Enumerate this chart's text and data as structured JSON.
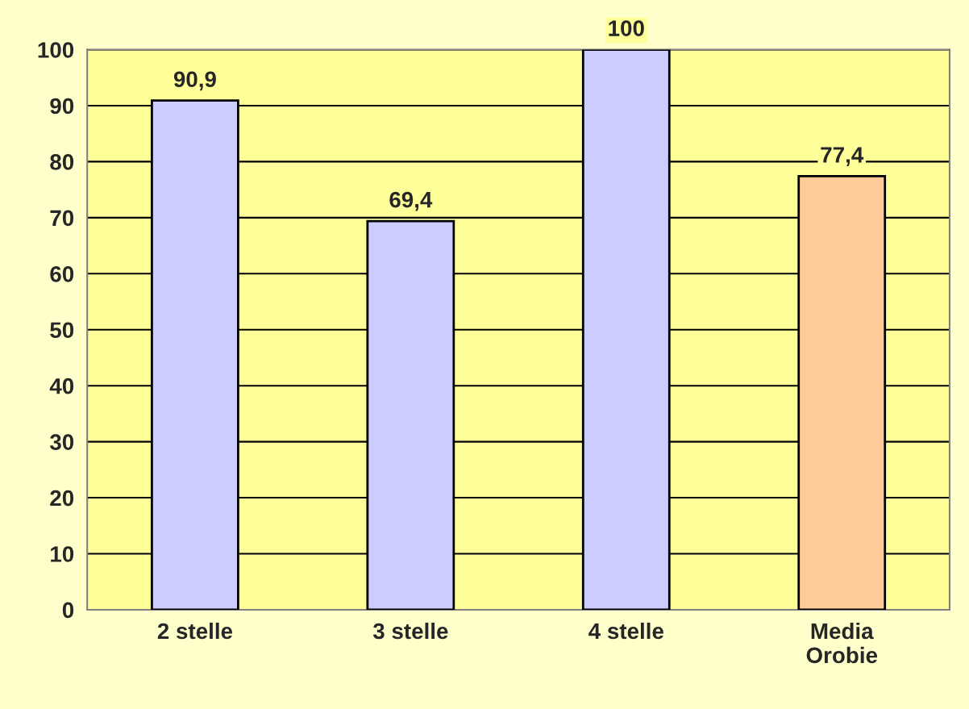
{
  "chart_data": {
    "type": "bar",
    "categories": [
      "2 stelle",
      "3 stelle",
      "4 stelle",
      "Media\nOrobie"
    ],
    "values": [
      90.9,
      69.4,
      100,
      77.4
    ],
    "value_labels": [
      "90,9",
      "69,4",
      "100",
      "77,4"
    ],
    "colors": [
      "#ccccff",
      "#ccccff",
      "#ccccff",
      "#ffcc99"
    ],
    "ylim": [
      0,
      100
    ],
    "yticks": [
      0,
      10,
      20,
      30,
      40,
      50,
      60,
      70,
      80,
      90,
      100
    ],
    "grid": "y",
    "legend": false
  }
}
